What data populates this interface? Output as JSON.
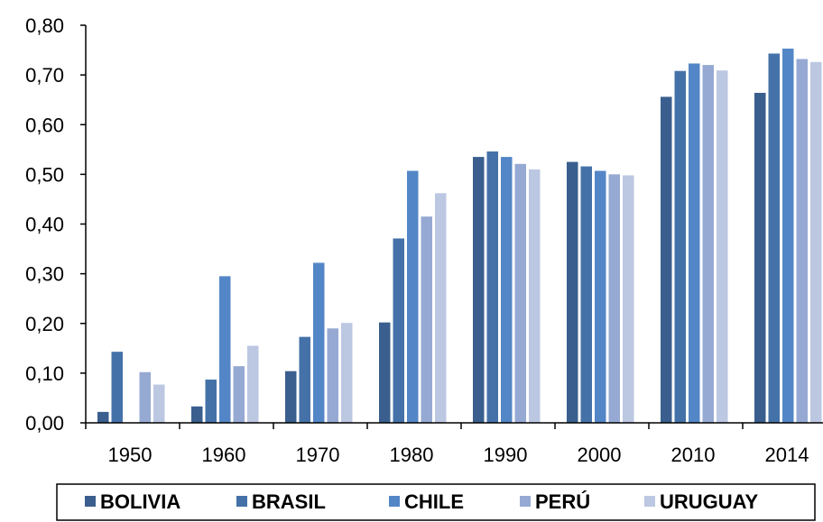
{
  "chart_data": {
    "type": "bar",
    "categories": [
      "1950",
      "1960",
      "1970",
      "1980",
      "1990",
      "2000",
      "2010",
      "2014"
    ],
    "y_ticks": [
      "0,00",
      "0,10",
      "0,20",
      "0,30",
      "0,40",
      "0,50",
      "0,60",
      "0,70",
      "0,80"
    ],
    "ylim": [
      0,
      0.8
    ],
    "grid": false,
    "legend_position": "bottom",
    "title": "",
    "xlabel": "",
    "ylabel": "",
    "series": [
      {
        "name": "BOLIVIA",
        "color": "#3A5F8E",
        "values": [
          0.022,
          0.033,
          0.104,
          0.202,
          0.535,
          0.525,
          0.656,
          0.664
        ]
      },
      {
        "name": "BRASIL",
        "color": "#4472A8",
        "values": [
          0.143,
          0.087,
          0.173,
          0.371,
          0.546,
          0.516,
          0.708,
          0.743
        ]
      },
      {
        "name": "CHILE",
        "color": "#5386C6",
        "values": [
          null,
          0.295,
          0.322,
          0.507,
          0.535,
          0.507,
          0.723,
          0.753
        ]
      },
      {
        "name": "PERÚ",
        "color": "#95A9D3",
        "values": [
          0.102,
          0.114,
          0.19,
          0.415,
          0.521,
          0.5,
          0.72,
          0.732
        ]
      },
      {
        "name": "URUGUAY",
        "color": "#BCC7E2",
        "values": [
          0.077,
          0.155,
          0.201,
          0.462,
          0.51,
          0.498,
          0.709,
          0.726
        ]
      }
    ]
  }
}
